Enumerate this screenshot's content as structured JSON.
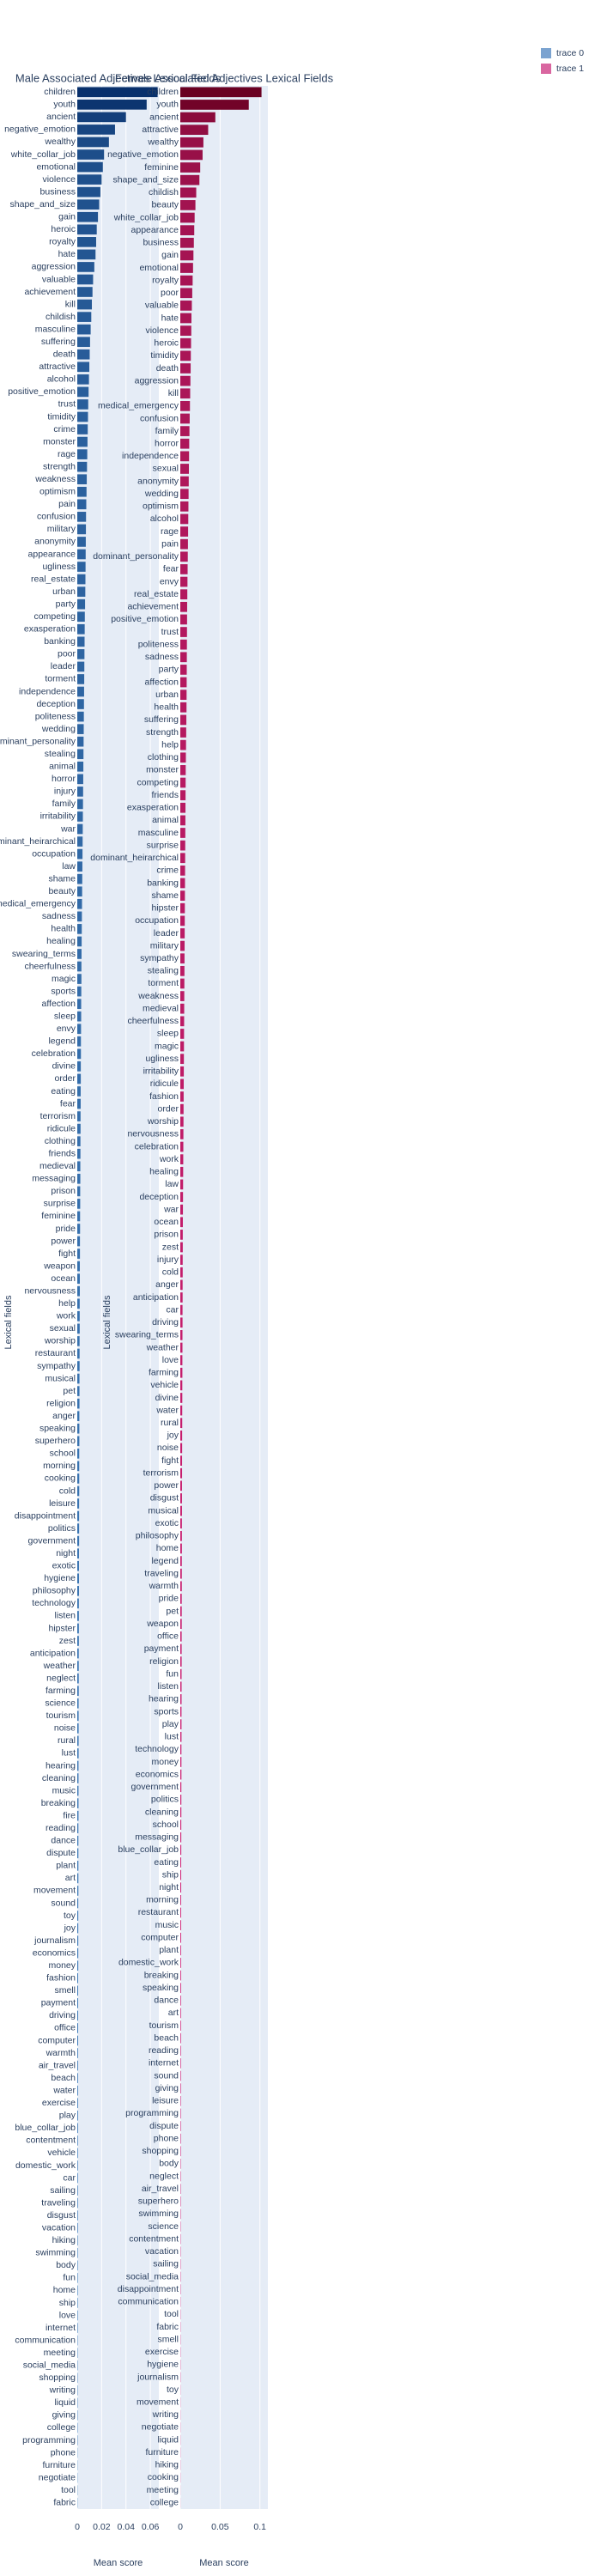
{
  "chart_data": [
    {
      "type": "bar",
      "orientation": "horizontal",
      "title": "Male Associated Adjectives Lexical Fields",
      "xlabel": "Mean score",
      "ylabel": "Lexical fields",
      "grid": true,
      "legend": "top-right",
      "categories": [
        "children",
        "youth",
        "ancient",
        "negative_emotion",
        "wealthy",
        "white_collar_job",
        "emotional",
        "violence",
        "business",
        "shape_and_size",
        "gain",
        "heroic",
        "royalty",
        "hate",
        "aggression",
        "valuable",
        "achievement",
        "kill",
        "childish",
        "masculine",
        "suffering",
        "death",
        "attractive",
        "alcohol",
        "positive_emotion",
        "trust",
        "timidity",
        "crime",
        "monster",
        "rage",
        "strength",
        "weakness",
        "optimism",
        "pain",
        "confusion",
        "military",
        "anonymity",
        "appearance",
        "ugliness",
        "real_estate",
        "urban",
        "party",
        "competing",
        "exasperation",
        "banking",
        "poor",
        "leader",
        "torment",
        "independence",
        "deception",
        "politeness",
        "wedding",
        "dominant_personality",
        "stealing",
        "animal",
        "horror",
        "injury",
        "family",
        "irritability",
        "war",
        "dominant_heirarchical",
        "occupation",
        "law",
        "shame",
        "beauty",
        "medical_emergency",
        "sadness",
        "health",
        "healing",
        "swearing_terms",
        "cheerfulness",
        "magic",
        "sports",
        "affection",
        "sleep",
        "envy",
        "legend",
        "celebration",
        "divine",
        "order",
        "eating",
        "fear",
        "terrorism",
        "ridicule",
        "clothing",
        "friends",
        "medieval",
        "messaging",
        "prison",
        "surprise",
        "feminine",
        "pride",
        "power",
        "fight",
        "weapon",
        "ocean",
        "nervousness",
        "help",
        "work",
        "sexual",
        "worship",
        "restaurant",
        "sympathy",
        "musical",
        "pet",
        "religion",
        "anger",
        "speaking",
        "superhero",
        "school",
        "morning",
        "cooking",
        "cold",
        "leisure",
        "disappointment",
        "politics",
        "government",
        "night",
        "exotic",
        "hygiene",
        "philosophy",
        "technology",
        "listen",
        "hipster",
        "zest",
        "anticipation",
        "weather",
        "neglect",
        "farming",
        "science",
        "tourism",
        "noise",
        "rural",
        "lust",
        "hearing",
        "cleaning",
        "music",
        "breaking",
        "fire",
        "reading",
        "dance",
        "dispute",
        "plant",
        "art",
        "movement",
        "sound",
        "toy",
        "joy",
        "journalism",
        "economics",
        "money",
        "fashion",
        "smell",
        "payment",
        "driving",
        "office",
        "computer",
        "warmth",
        "air_travel",
        "beach",
        "water",
        "exercise",
        "play",
        "blue_collar_job",
        "contentment",
        "vehicle",
        "domestic_work",
        "car",
        "sailing",
        "traveling",
        "disgust",
        "vacation",
        "hiking",
        "swimming",
        "body",
        "fun",
        "home",
        "ship",
        "love",
        "internet",
        "communication",
        "meeting",
        "social_media",
        "shopping",
        "writing",
        "liquid",
        "giving",
        "college",
        "programming",
        "phone",
        "furniture",
        "negotiate",
        "tool",
        "fabric"
      ],
      "series": [
        {
          "name": "trace 0",
          "color": "#7ba3d0",
          "colorscale": [
            "#4a8ccb",
            "#08306b"
          ],
          "values": [
            0.066,
            0.057,
            0.04,
            0.031,
            0.026,
            0.022,
            0.021,
            0.02,
            0.019,
            0.018,
            0.017,
            0.016,
            0.0155,
            0.015,
            0.014,
            0.013,
            0.0125,
            0.012,
            0.0115,
            0.011,
            0.0105,
            0.0102,
            0.0099,
            0.0096,
            0.0093,
            0.009,
            0.0088,
            0.0086,
            0.0084,
            0.0082,
            0.008,
            0.0078,
            0.0076,
            0.0074,
            0.0072,
            0.0071,
            0.007,
            0.0069,
            0.0068,
            0.0067,
            0.0066,
            0.0064,
            0.0062,
            0.0061,
            0.006,
            0.0059,
            0.0058,
            0.0057,
            0.0056,
            0.0055,
            0.0054,
            0.0053,
            0.0052,
            0.0051,
            0.005,
            0.0049,
            0.0048,
            0.0047,
            0.0046,
            0.0045,
            0.0044,
            0.0043,
            0.0042,
            0.0041,
            0.004,
            0.0039,
            0.0038,
            0.0037,
            0.0036,
            0.0035,
            0.0034,
            0.0034,
            0.0033,
            0.0032,
            0.0032,
            0.0031,
            0.003,
            0.003,
            0.0029,
            0.0029,
            0.0028,
            0.0028,
            0.0027,
            0.0027,
            0.0026,
            0.0026,
            0.0025,
            0.0025,
            0.0024,
            0.0024,
            0.0023,
            0.0023,
            0.0022,
            0.0022,
            0.0021,
            0.0021,
            0.0021,
            0.002,
            0.002,
            0.002,
            0.0019,
            0.0019,
            0.0019,
            0.0018,
            0.0018,
            0.0018,
            0.0017,
            0.0017,
            0.0017,
            0.0016,
            0.0016,
            0.0016,
            0.0016,
            0.0015,
            0.0015,
            0.0015,
            0.0015,
            0.0014,
            0.0014,
            0.0014,
            0.0014,
            0.0013,
            0.0013,
            0.0013,
            0.0013,
            0.0012,
            0.0012,
            0.0012,
            0.0012,
            0.0011,
            0.0011,
            0.0011,
            0.0011,
            0.0011,
            0.001,
            0.001,
            0.001,
            0.001,
            0.001,
            0.0009,
            0.0009,
            0.0009,
            0.0009,
            0.0009,
            0.0009,
            0.0008,
            0.0008,
            0.0008,
            0.0008,
            0.0008,
            0.0008,
            0.0007,
            0.0007,
            0.0007,
            0.0007,
            0.0007,
            0.0007,
            0.0006,
            0.0006,
            0.0006,
            0.0006,
            0.0006,
            0.0006,
            0.0006,
            0.0005,
            0.0005,
            0.0005,
            0.0005,
            0.0005,
            0.0005,
            0.0005,
            0.0005,
            0.0004,
            0.0004,
            0.0004,
            0.0004,
            0.0004,
            0.0004,
            0.0004,
            0.0004,
            0.0003,
            0.0003,
            0.0003,
            0.0003,
            0.0003,
            0.0003,
            0.0003,
            0.0003,
            0.0003,
            0.0002,
            0.0002,
            0.0002,
            0.0002,
            0.0002
          ]
        }
      ],
      "xlim": [
        0,
        0.067
      ],
      "xticks": [
        0,
        0.02,
        0.04,
        0.06
      ]
    },
    {
      "type": "bar",
      "orientation": "horizontal",
      "title": "Female Associated Adjectives Lexical Fields",
      "xlabel": "Mean score",
      "ylabel": "Lexical fields",
      "grid": true,
      "legend": "top-right",
      "categories": [
        "children",
        "youth",
        "ancient",
        "attractive",
        "wealthy",
        "negative_emotion",
        "feminine",
        "shape_and_size",
        "childish",
        "beauty",
        "white_collar_job",
        "appearance",
        "business",
        "gain",
        "emotional",
        "royalty",
        "poor",
        "valuable",
        "hate",
        "violence",
        "heroic",
        "timidity",
        "death",
        "aggression",
        "kill",
        "medical_emergency",
        "confusion",
        "family",
        "horror",
        "independence",
        "sexual",
        "anonymity",
        "wedding",
        "optimism",
        "alcohol",
        "rage",
        "pain",
        "dominant_personality",
        "fear",
        "envy",
        "real_estate",
        "achievement",
        "positive_emotion",
        "trust",
        "politeness",
        "sadness",
        "party",
        "affection",
        "urban",
        "health",
        "suffering",
        "strength",
        "help",
        "clothing",
        "monster",
        "competing",
        "friends",
        "exasperation",
        "animal",
        "masculine",
        "surprise",
        "dominant_heirarchical",
        "crime",
        "banking",
        "shame",
        "hipster",
        "occupation",
        "leader",
        "military",
        "sympathy",
        "stealing",
        "torment",
        "weakness",
        "medieval",
        "cheerfulness",
        "sleep",
        "magic",
        "ugliness",
        "irritability",
        "ridicule",
        "fashion",
        "order",
        "worship",
        "nervousness",
        "celebration",
        "work",
        "healing",
        "law",
        "deception",
        "war",
        "ocean",
        "prison",
        "zest",
        "injury",
        "cold",
        "anger",
        "anticipation",
        "car",
        "driving",
        "swearing_terms",
        "weather",
        "love",
        "farming",
        "vehicle",
        "divine",
        "water",
        "rural",
        "joy",
        "noise",
        "fight",
        "terrorism",
        "power",
        "disgust",
        "musical",
        "exotic",
        "philosophy",
        "home",
        "legend",
        "traveling",
        "warmth",
        "pride",
        "pet",
        "weapon",
        "office",
        "payment",
        "religion",
        "fun",
        "listen",
        "hearing",
        "sports",
        "play",
        "lust",
        "technology",
        "money",
        "economics",
        "government",
        "politics",
        "cleaning",
        "school",
        "messaging",
        "blue_collar_job",
        "eating",
        "ship",
        "night",
        "morning",
        "restaurant",
        "music",
        "computer",
        "plant",
        "domestic_work",
        "breaking",
        "speaking",
        "dance",
        "art",
        "tourism",
        "beach",
        "reading",
        "internet",
        "sound",
        "giving",
        "leisure",
        "programming",
        "dispute",
        "phone",
        "shopping",
        "body",
        "neglect",
        "air_travel",
        "superhero",
        "swimming",
        "science",
        "contentment",
        "vacation",
        "sailing",
        "social_media",
        "disappointment",
        "communication",
        "tool",
        "fabric",
        "smell",
        "exercise",
        "hygiene",
        "journalism",
        "toy",
        "movement",
        "writing",
        "negotiate",
        "liquid",
        "furniture",
        "hiking",
        "cooking",
        "meeting",
        "college"
      ],
      "series": [
        {
          "name": "trace 1",
          "color": "#d966a0",
          "colorscale": [
            "#e7298a",
            "#67001f"
          ],
          "values": [
            0.102,
            0.086,
            0.044,
            0.035,
            0.029,
            0.028,
            0.025,
            0.024,
            0.02,
            0.019,
            0.018,
            0.0175,
            0.017,
            0.0165,
            0.016,
            0.0155,
            0.015,
            0.0145,
            0.014,
            0.0138,
            0.0135,
            0.0132,
            0.013,
            0.0127,
            0.0124,
            0.0121,
            0.0118,
            0.0115,
            0.0112,
            0.011,
            0.0108,
            0.0106,
            0.0104,
            0.0102,
            0.01,
            0.0098,
            0.0096,
            0.0094,
            0.0092,
            0.009,
            0.0088,
            0.0086,
            0.0085,
            0.0084,
            0.0083,
            0.0082,
            0.0081,
            0.008,
            0.0079,
            0.0078,
            0.0076,
            0.0074,
            0.0072,
            0.007,
            0.0068,
            0.0067,
            0.0066,
            0.0065,
            0.0064,
            0.0063,
            0.0062,
            0.0061,
            0.006,
            0.0059,
            0.0058,
            0.0057,
            0.0056,
            0.0055,
            0.0054,
            0.0053,
            0.0052,
            0.0051,
            0.005,
            0.0049,
            0.0048,
            0.0047,
            0.0046,
            0.0045,
            0.0044,
            0.0043,
            0.0042,
            0.0041,
            0.004,
            0.0039,
            0.0038,
            0.0037,
            0.0036,
            0.0035,
            0.0034,
            0.0033,
            0.0032,
            0.0031,
            0.0031,
            0.003,
            0.003,
            0.0029,
            0.0029,
            0.0028,
            0.0028,
            0.0027,
            0.0027,
            0.0026,
            0.0026,
            0.0025,
            0.0025,
            0.0024,
            0.0024,
            0.0023,
            0.0023,
            0.0022,
            0.0022,
            0.0021,
            0.0021,
            0.0021,
            0.002,
            0.002,
            0.002,
            0.0019,
            0.0019,
            0.0019,
            0.0018,
            0.0018,
            0.0018,
            0.0017,
            0.0017,
            0.0017,
            0.0016,
            0.0016,
            0.0016,
            0.0015,
            0.0015,
            0.0015,
            0.0014,
            0.0014,
            0.0014,
            0.0013,
            0.0013,
            0.0013,
            0.0012,
            0.0012,
            0.0012,
            0.0011,
            0.0011,
            0.0011,
            0.001,
            0.001,
            0.001,
            0.001,
            0.0009,
            0.0009,
            0.0009,
            0.0009,
            0.0008,
            0.0008,
            0.0008,
            0.0008,
            0.0007,
            0.0007,
            0.0007,
            0.0007,
            0.0006,
            0.0006,
            0.0006,
            0.0006,
            0.0006,
            0.0005,
            0.0005,
            0.0005,
            0.0005,
            0.0005,
            0.0004,
            0.0004,
            0.0004,
            0.0004,
            0.0004,
            0.0004,
            0.0003,
            0.0003,
            0.0003,
            0.0003,
            0.0003,
            0.0003,
            0.0003,
            0.0002,
            0.0002,
            0.0002,
            0.0002,
            0.0002,
            0.0002,
            0.0002,
            0.0002,
            0.0001,
            0.0001
          ]
        }
      ],
      "xlim": [
        0,
        0.11
      ],
      "xticks": [
        0,
        0.05,
        0.1
      ]
    }
  ]
}
